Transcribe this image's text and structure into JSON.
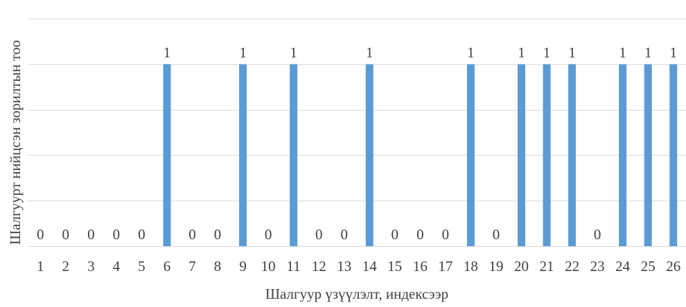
{
  "chart_data": {
    "type": "bar",
    "categories": [
      "1",
      "2",
      "3",
      "4",
      "5",
      "6",
      "7",
      "8",
      "9",
      "10",
      "11",
      "12",
      "13",
      "14",
      "15",
      "16",
      "17",
      "18",
      "19",
      "20",
      "21",
      "22",
      "23",
      "24",
      "25",
      "26"
    ],
    "values": [
      0,
      0,
      0,
      0,
      0,
      1,
      0,
      0,
      1,
      0,
      1,
      0,
      0,
      1,
      0,
      0,
      0,
      1,
      0,
      1,
      1,
      1,
      0,
      1,
      1,
      1
    ],
    "title": "",
    "xlabel": "Шалгуур үзүүлэлт, индексээр",
    "ylabel": "Шалгуурт нийцсэн зорилтын тоо",
    "ylim": [
      0,
      1.25
    ],
    "grid": true,
    "data_labels": true,
    "bar_color": "#5b9bd5",
    "grid_color": "#d9d9d9",
    "text_color": "#404040"
  }
}
